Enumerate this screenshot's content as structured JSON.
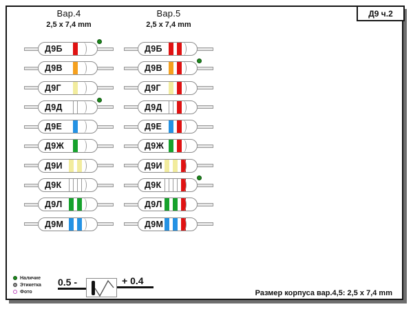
{
  "sheet": {
    "title": "Д9 ч.2"
  },
  "columns": [
    {
      "id": "var4",
      "title": "Вар.4",
      "subtitle": "2,5 x 7,4 mm"
    },
    {
      "id": "var5",
      "title": "Вар.5",
      "subtitle": "2,5 x 7,4 mm"
    }
  ],
  "colors": {
    "red": "#e01212",
    "orange": "#f5a01e",
    "yellow": "#f2ec9e",
    "white": "#ffffff",
    "blue": "#2492e4",
    "green": "#16a22c",
    "presence_dot": "#1d8a1d"
  },
  "diodes": [
    {
      "label": "Д9Б",
      "var4": {
        "bands": [
          "red"
        ],
        "dot": true
      },
      "var5": {
        "bands": [
          "red",
          "red"
        ],
        "dot": false
      }
    },
    {
      "label": "Д9В",
      "var4": {
        "bands": [
          "orange"
        ],
        "dot": false
      },
      "var5": {
        "bands": [
          "orange",
          "red"
        ],
        "dot": true
      }
    },
    {
      "label": "Д9Г",
      "var4": {
        "bands": [
          "yellow"
        ],
        "dot": false
      },
      "var5": {
        "bands": [
          "yellow",
          "red"
        ],
        "dot": false
      }
    },
    {
      "label": "Д9Д",
      "var4": {
        "bands": [
          "white"
        ],
        "dot": true
      },
      "var5": {
        "bands": [
          "white",
          "red"
        ],
        "dot": false
      }
    },
    {
      "label": "Д9Е",
      "var4": {
        "bands": [
          "blue"
        ],
        "dot": false
      },
      "var5": {
        "bands": [
          "blue",
          "red"
        ],
        "dot": false
      }
    },
    {
      "label": "Д9Ж",
      "var4": {
        "bands": [
          "green"
        ],
        "dot": false
      },
      "var5": {
        "bands": [
          "green",
          "red"
        ],
        "dot": false
      }
    },
    {
      "label": "Д9И",
      "var4": {
        "bands": [
          "yellow",
          "yellow"
        ],
        "dot": false
      },
      "var5": {
        "bands": [
          "yellow",
          "yellow",
          "red"
        ],
        "dot": false
      }
    },
    {
      "label": "Д9К",
      "var4": {
        "bands": [
          "white",
          "white"
        ],
        "dot": false
      },
      "var5": {
        "bands": [
          "white",
          "white",
          "red"
        ],
        "dot": true
      }
    },
    {
      "label": "Д9Л",
      "var4": {
        "bands": [
          "green",
          "green"
        ],
        "dot": false
      },
      "var5": {
        "bands": [
          "green",
          "green",
          "red"
        ],
        "dot": false
      }
    },
    {
      "label": "Д9М",
      "var4": {
        "bands": [
          "blue",
          "blue"
        ],
        "dot": false
      },
      "var5": {
        "bands": [
          "blue",
          "blue",
          "red"
        ],
        "dot": false
      }
    }
  ],
  "legend": [
    {
      "style": "presence",
      "label": "Наличие"
    },
    {
      "style": "label",
      "label": "Этикетка"
    },
    {
      "style": "photo",
      "label": "Фото"
    }
  ],
  "polarity": {
    "left_label": "0.5 -",
    "right_label": "+ 0.4"
  },
  "footer": {
    "note": "Размер корпуса вар.4,5: 2,5 x 7,4 mm"
  }
}
